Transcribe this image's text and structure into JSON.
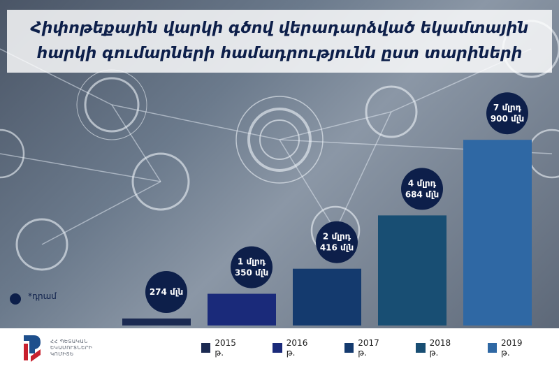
{
  "title": "Հիփոթեքային վարկի գծով վերադարձված եկամտային հարկի գումարների համադրությունն ըստ տարիների",
  "unit_note": "*դրամ",
  "logo": {
    "line1": "ՀՀ ՊԵՏԱԿԱՆ",
    "line2": "ԵԿԱՄՈՒՏՆԵՐԻ",
    "line3": "ԿՈՄԻՏԵ"
  },
  "chart_data": {
    "type": "bar",
    "categories": [
      "2015 թ.",
      "2016 թ.",
      "2017 թ.",
      "2018 թ.",
      "2019 թ."
    ],
    "values": [
      274000000,
      1350000000,
      2416000000,
      4684000000,
      7900000000
    ],
    "unit": "դրամ",
    "value_labels": [
      [
        "274 մլն"
      ],
      [
        "1 մլրդ",
        "350 մլն"
      ],
      [
        "2 մլրդ",
        "416 մլն"
      ],
      [
        "4 մլրդ",
        "684 մլն"
      ],
      [
        "7 մլրդ",
        "900 մլն"
      ]
    ],
    "colors": [
      "#1b2a52",
      "#1a2a7a",
      "#143a6e",
      "#184e73",
      "#2f68a4"
    ],
    "bubble_color": "#0d1f4a",
    "ylim": [
      0,
      8500000000
    ],
    "legend_position": "bottom",
    "grid": false
  }
}
